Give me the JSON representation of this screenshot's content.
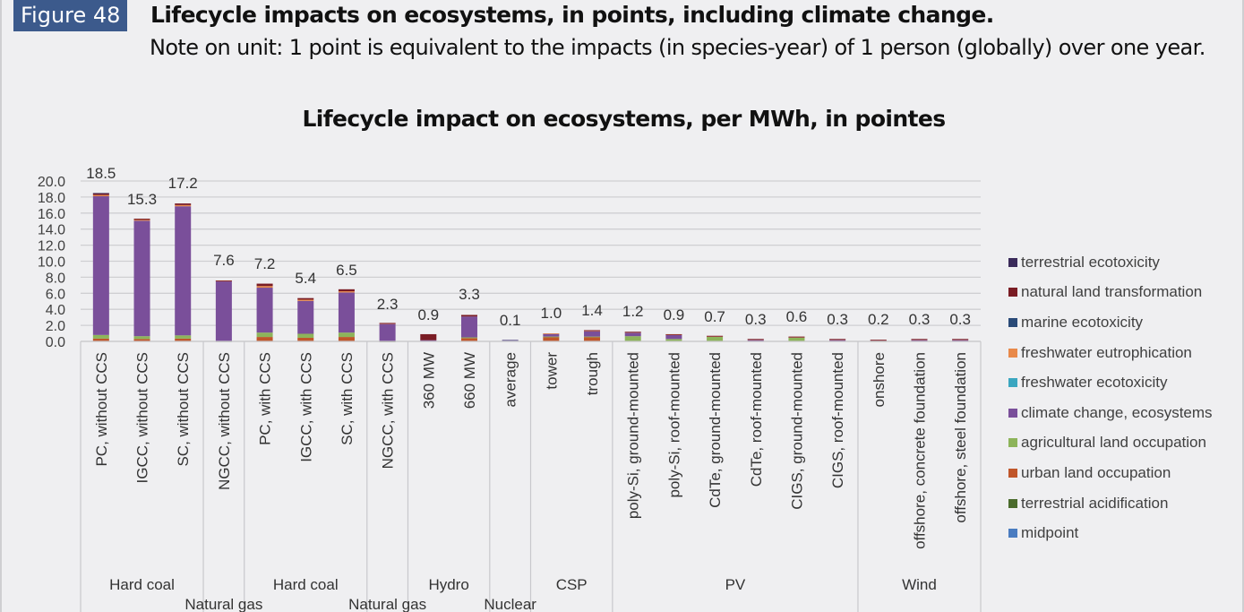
{
  "figure": {
    "badge": "Figure 48",
    "title": "Lifecycle impacts on ecosystems, in points, including climate change.",
    "note": "Note on unit: 1 point is equivalent to the impacts (in species-year) of 1 person (globally) over one year."
  },
  "chart_data": {
    "type": "bar",
    "stacked": true,
    "title": "Lifecycle impact on ecosystems, per MWh, in pointes",
    "xlabel": "",
    "ylabel": "",
    "ylim": [
      0,
      20
    ],
    "yticks": [
      "0.0",
      "2.0",
      "4.0",
      "6.0",
      "8.0",
      "10.0",
      "12.0",
      "14.0",
      "16.0",
      "18.0",
      "20.0"
    ],
    "grid": true,
    "legend_position": "right",
    "categories": [
      "PC, without CCS",
      "IGCC, without CCS",
      "SC, without CCS",
      "NGCC, without CCS",
      "PC, with CCS",
      "IGCC, with CCS",
      "SC, with CCS",
      "NGCC, with CCS",
      "360 MW",
      "660 MW",
      "average",
      "tower",
      "trough",
      "poly-Si, ground-mounted",
      "poly-Si, roof-mounted",
      "CdTe, ground-mounted",
      "CdTe, roof-mounted",
      "CIGS, ground-mounted",
      "CIGS, roof-mounted",
      "onshore",
      "offshore, concrete foundation",
      "offshore, steel foundation"
    ],
    "groups": [
      {
        "label": "Hard coal",
        "count": 3,
        "row": 1
      },
      {
        "label": "Natural gas",
        "count": 1,
        "row": 2
      },
      {
        "label": "Hard coal",
        "count": 3,
        "row": 1
      },
      {
        "label": "Natural gas",
        "count": 1,
        "row": 2
      },
      {
        "label": "Hydro",
        "count": 2,
        "row": 1
      },
      {
        "label": "Nuclear",
        "count": 1,
        "row": 2
      },
      {
        "label": "CSP",
        "count": 2,
        "row": 1
      },
      {
        "label": "PV",
        "count": 6,
        "row": 1
      },
      {
        "label": "Wind",
        "count": 3,
        "row": 1
      }
    ],
    "totals": [
      18.5,
      15.3,
      17.2,
      7.6,
      7.2,
      5.4,
      6.5,
      2.3,
      0.9,
      3.3,
      0.1,
      1.0,
      1.4,
      1.2,
      0.9,
      0.7,
      0.3,
      0.6,
      0.3,
      0.2,
      0.3,
      0.3
    ],
    "total_labels": [
      "18.5",
      "15.3",
      "17.2",
      "7.6",
      "7.2",
      "5.4",
      "6.5",
      "2.3",
      "0.9",
      "3.3",
      "0.1",
      "1.0",
      "1.4",
      "1.2",
      "0.9",
      "0.7",
      "0.3",
      "0.6",
      "0.3",
      "0.2",
      "0.3",
      "0.3"
    ],
    "series": [
      {
        "name": "midpoint",
        "color": "#4a7cc0",
        "values": [
          0,
          0,
          0,
          0,
          0,
          0,
          0,
          0,
          0,
          0,
          0,
          0,
          0,
          0,
          0,
          0,
          0,
          0,
          0,
          0,
          0,
          0
        ]
      },
      {
        "name": "terrestrial acidification",
        "color": "#4a6b2c",
        "values": [
          0.05,
          0.05,
          0.05,
          0.02,
          0.05,
          0.05,
          0.05,
          0.01,
          0,
          0,
          0,
          0,
          0,
          0,
          0,
          0,
          0,
          0,
          0,
          0,
          0,
          0
        ]
      },
      {
        "name": "urban land occupation",
        "color": "#c0562a",
        "values": [
          0.3,
          0.25,
          0.3,
          0.02,
          0.5,
          0.4,
          0.5,
          0.02,
          0.05,
          0.4,
          0,
          0.55,
          0.55,
          0.05,
          0.05,
          0.05,
          0,
          0.05,
          0,
          0,
          0,
          0
        ]
      },
      {
        "name": "agricultural land occupation",
        "color": "#8db45a",
        "values": [
          0.45,
          0.35,
          0.4,
          0.02,
          0.55,
          0.5,
          0.55,
          0.02,
          0,
          0.1,
          0,
          0.05,
          0.05,
          0.6,
          0.25,
          0.55,
          0.05,
          0.45,
          0.05,
          0.02,
          0.05,
          0.05
        ]
      },
      {
        "name": "climate change, ecosystems",
        "color": "#7a4f9a",
        "values": [
          17.3,
          14.4,
          16.1,
          7.5,
          5.6,
          4.1,
          5.0,
          2.2,
          0.1,
          2.6,
          0.1,
          0.35,
          0.7,
          0.5,
          0.55,
          0.05,
          0.2,
          0.05,
          0.2,
          0.15,
          0.2,
          0.2
        ]
      },
      {
        "name": "freshwater ecotoxicity",
        "color": "#3aa6c0",
        "values": [
          0,
          0,
          0,
          0,
          0,
          0,
          0,
          0,
          0,
          0,
          0,
          0,
          0,
          0,
          0,
          0,
          0,
          0,
          0,
          0,
          0,
          0
        ]
      },
      {
        "name": "freshwater eutrophication",
        "color": "#e8894a",
        "values": [
          0.15,
          0.1,
          0.15,
          0.01,
          0.2,
          0.15,
          0.15,
          0.01,
          0,
          0,
          0,
          0.05,
          0.05,
          0.02,
          0.02,
          0.02,
          0.02,
          0.02,
          0.02,
          0.01,
          0.02,
          0.02
        ]
      },
      {
        "name": "marine ecotoxicity",
        "color": "#2a4a78",
        "values": [
          0,
          0,
          0,
          0,
          0,
          0,
          0,
          0,
          0,
          0,
          0,
          0,
          0,
          0,
          0,
          0,
          0,
          0,
          0,
          0,
          0,
          0
        ]
      },
      {
        "name": "natural land transformation",
        "color": "#7a1c24",
        "values": [
          0.2,
          0.15,
          0.2,
          0.03,
          0.3,
          0.2,
          0.25,
          0.04,
          0.75,
          0.2,
          0,
          0,
          0.05,
          0.03,
          0.03,
          0.03,
          0.03,
          0.03,
          0.03,
          0.02,
          0.03,
          0.03
        ]
      },
      {
        "name": "terrestrial ecotoxicity",
        "color": "#3a2a5a",
        "values": [
          0.05,
          0,
          0,
          0,
          0,
          0,
          0,
          0,
          0,
          0,
          0,
          0,
          0,
          0,
          0,
          0,
          0,
          0,
          0,
          0,
          0,
          0
        ]
      }
    ]
  },
  "legend": [
    {
      "label": "terrestrial ecotoxicity",
      "color": "#3a2a5a"
    },
    {
      "label": "natural land transformation",
      "color": "#7a1c24"
    },
    {
      "label": "marine ecotoxicity",
      "color": "#2a4a78"
    },
    {
      "label": "freshwater eutrophication",
      "color": "#e8894a"
    },
    {
      "label": "freshwater ecotoxicity",
      "color": "#3aa6c0"
    },
    {
      "label": "climate change, ecosystems",
      "color": "#7a4f9a"
    },
    {
      "label": "agricultural land occupation",
      "color": "#8db45a"
    },
    {
      "label": "urban land occupation",
      "color": "#c0562a"
    },
    {
      "label": "terrestrial acidification",
      "color": "#4a6b2c"
    },
    {
      "label": "midpoint",
      "color": "#4a7cc0"
    }
  ]
}
